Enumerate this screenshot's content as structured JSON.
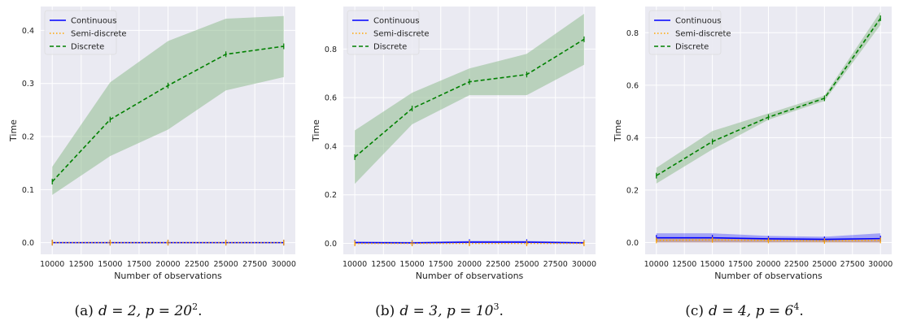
{
  "figure": {
    "captions": [
      {
        "label": "(a)",
        "math": "d = 2, p = 20",
        "sup": "2",
        "end": "."
      },
      {
        "label": "(b)",
        "math": "d = 3, p = 10",
        "sup": "3",
        "end": "."
      },
      {
        "label": "(c)",
        "math": "d = 4, p = 6",
        "sup": "4",
        "end": "."
      }
    ]
  },
  "colors": {
    "background": "#eaeaf2",
    "grid": "#ffffff",
    "continuous": "#0000ff",
    "semi_discrete": "#ffa500",
    "discrete": "#008000",
    "discrete_band": "#8fbc8f"
  },
  "chart_data": [
    {
      "type": "line",
      "title": "",
      "xlabel": "Number of observations",
      "ylabel": "Time",
      "x": [
        10000,
        15000,
        20000,
        25000,
        30000
      ],
      "xticks": [
        10000,
        12500,
        15000,
        17500,
        20000,
        22500,
        25000,
        27500,
        30000
      ],
      "yticks": [
        0.0,
        0.1,
        0.2,
        0.3,
        0.4
      ],
      "ytick_labels": [
        "0.0",
        "0.1",
        "0.2",
        "0.3",
        "0.4"
      ],
      "ylim": [
        -0.022,
        0.445
      ],
      "xlim": [
        9000,
        31000
      ],
      "grid": true,
      "legend": "top-left",
      "series": [
        {
          "name": "Continuous",
          "style": "solid",
          "values": [
            0.0,
            0.0,
            0.0,
            0.0,
            0.0
          ],
          "lower": [
            0.0,
            0.0,
            0.0,
            0.0,
            0.0
          ],
          "upper": [
            0.0,
            0.0,
            0.0,
            0.0,
            0.0
          ]
        },
        {
          "name": "Semi-discrete",
          "style": "dotted",
          "values": [
            0.0,
            0.0,
            0.0,
            0.0,
            0.0
          ],
          "lower": [
            0.0,
            0.0,
            0.0,
            0.0,
            0.0
          ],
          "upper": [
            0.0,
            0.0,
            0.0,
            0.0,
            0.0
          ]
        },
        {
          "name": "Discrete",
          "style": "dashed",
          "values": [
            0.115,
            0.232,
            0.296,
            0.355,
            0.37
          ],
          "lower": [
            0.09,
            0.163,
            0.213,
            0.287,
            0.312
          ],
          "upper": [
            0.143,
            0.302,
            0.38,
            0.422,
            0.427
          ]
        }
      ]
    },
    {
      "type": "line",
      "title": "",
      "xlabel": "Number of observations",
      "ylabel": "Time",
      "x": [
        10000,
        15000,
        20000,
        25000,
        30000
      ],
      "xticks": [
        10000,
        12500,
        15000,
        17500,
        20000,
        22500,
        25000,
        27500,
        30000
      ],
      "yticks": [
        0.0,
        0.2,
        0.4,
        0.6,
        0.8
      ],
      "ytick_labels": [
        "0.0",
        "0.2",
        "0.4",
        "0.6",
        "0.8"
      ],
      "ylim": [
        -0.045,
        0.975
      ],
      "xlim": [
        9000,
        31000
      ],
      "grid": true,
      "legend": "top-left",
      "series": [
        {
          "name": "Continuous",
          "style": "solid",
          "values": [
            0.003,
            0.002,
            0.005,
            0.005,
            0.002
          ],
          "lower": [
            0.0,
            0.0,
            0.0,
            0.0,
            0.0
          ],
          "upper": [
            0.008,
            0.006,
            0.01,
            0.01,
            0.006
          ]
        },
        {
          "name": "Semi-discrete",
          "style": "dotted",
          "values": [
            0.0,
            0.0,
            0.0,
            0.0,
            0.0
          ],
          "lower": [
            0.0,
            0.0,
            0.0,
            0.0,
            0.0
          ],
          "upper": [
            0.0,
            0.0,
            0.0,
            0.0,
            0.0
          ]
        },
        {
          "name": "Discrete",
          "style": "dashed",
          "values": [
            0.355,
            0.555,
            0.665,
            0.695,
            0.84
          ],
          "lower": [
            0.245,
            0.49,
            0.61,
            0.61,
            0.735
          ],
          "upper": [
            0.465,
            0.62,
            0.72,
            0.78,
            0.945
          ]
        }
      ]
    },
    {
      "type": "line",
      "title": "",
      "xlabel": "Number of observations",
      "ylabel": "Time",
      "x": [
        10000,
        15000,
        20000,
        25000,
        30000
      ],
      "xticks": [
        10000,
        12500,
        15000,
        17500,
        20000,
        22500,
        25000,
        27500,
        30000
      ],
      "yticks": [
        0.0,
        0.2,
        0.4,
        0.6,
        0.8
      ],
      "ytick_labels": [
        "0.0",
        "0.2",
        "0.4",
        "0.6",
        "0.8"
      ],
      "ylim": [
        -0.045,
        0.9
      ],
      "xlim": [
        9000,
        31000
      ],
      "grid": true,
      "legend": "top-left",
      "series": [
        {
          "name": "Continuous",
          "style": "solid",
          "values": [
            0.018,
            0.018,
            0.014,
            0.012,
            0.015
          ],
          "lower": [
            0.0,
            0.0,
            0.0,
            0.0,
            0.0
          ],
          "upper": [
            0.035,
            0.035,
            0.025,
            0.022,
            0.035
          ]
        },
        {
          "name": "Semi-discrete",
          "style": "dotted",
          "values": [
            0.008,
            0.01,
            0.008,
            0.006,
            0.008
          ],
          "lower": [
            0.0,
            0.0,
            0.0,
            0.0,
            0.0
          ],
          "upper": [
            0.015,
            0.018,
            0.015,
            0.012,
            0.015
          ]
        },
        {
          "name": "Discrete",
          "style": "dashed",
          "values": [
            0.255,
            0.385,
            0.478,
            0.55,
            0.855
          ],
          "lower": [
            0.225,
            0.355,
            0.468,
            0.54,
            0.83
          ],
          "upper": [
            0.285,
            0.425,
            0.492,
            0.56,
            0.88
          ]
        }
      ]
    }
  ]
}
